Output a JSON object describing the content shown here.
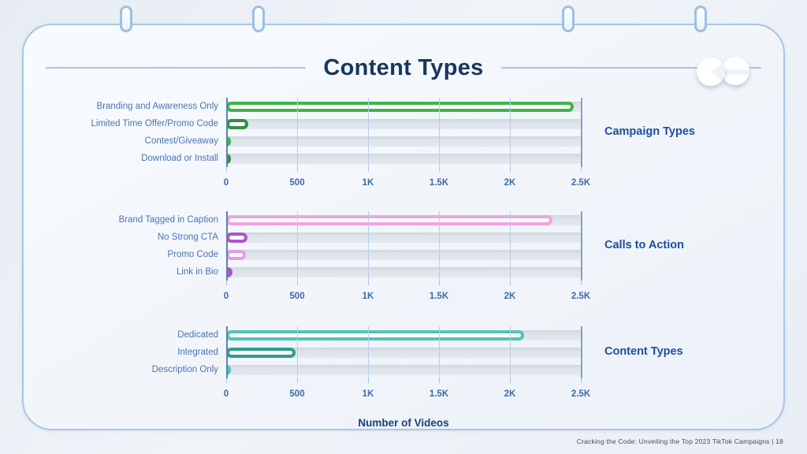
{
  "header": {
    "title": "Content Types"
  },
  "logo": {
    "icon": "smiley-face-logo"
  },
  "axis": {
    "title": "Number of Videos"
  },
  "footer": {
    "credit": "Cracking the Code: Unveiling the Top 2023 TikTok Campaigns |  18"
  },
  "colors": {
    "card_border": "#a9c6e6",
    "title_navy": "#17375e",
    "label_blue": "#4d73b2",
    "tick_blue": "#3f69a8",
    "section_blue": "#1d4e9c",
    "track_gray": "#dde3ea",
    "green_bright": "#3cb54a",
    "green_dark": "#2f8f3e",
    "pink_light": "#f0a3e0",
    "orchid": "#b352c8",
    "pink_soft": "#ea9ae6",
    "teal_light": "#52c3b6",
    "teal_dark": "#2e9c90"
  },
  "chart_data": [
    {
      "type": "bar",
      "orientation": "horizontal",
      "title": "Campaign Types",
      "categories": [
        "Branding and Awareness Only",
        "Limited Time Offer/Promo Code",
        "Contest/Giveaway",
        "Download or Install"
      ],
      "values": [
        2450,
        155,
        20,
        15
      ],
      "bar_colors": [
        "#3cb54a",
        "#2f8f3e",
        "#3cb54a",
        "#2f8f3e"
      ],
      "bar_styles": [
        "outline",
        "outline",
        "solid",
        "solid"
      ],
      "xticks": [
        "0",
        "500",
        "1K",
        "1.5K",
        "2K",
        "2.5K"
      ],
      "xlim": [
        0,
        2500
      ],
      "grid": true,
      "legend": "none"
    },
    {
      "type": "bar",
      "orientation": "horizontal",
      "title": "Calls to Action",
      "categories": [
        "Brand Tagged in Caption",
        "No Strong CTA",
        "Promo Code",
        "Link in Bio"
      ],
      "values": [
        2300,
        150,
        140,
        45
      ],
      "bar_colors": [
        "#f0a3e0",
        "#b352c8",
        "#ea9ae6",
        "#b352c8"
      ],
      "bar_styles": [
        "outline",
        "outline",
        "outline",
        "solid"
      ],
      "xticks": [
        "0",
        "500",
        "1K",
        "1.5K",
        "2K",
        "2.5K"
      ],
      "xlim": [
        0,
        2500
      ],
      "grid": true,
      "legend": "none"
    },
    {
      "type": "bar",
      "orientation": "horizontal",
      "title": "Content Types",
      "categories": [
        "Dedicated",
        "Integrated",
        "Description Only"
      ],
      "values": [
        2100,
        490,
        30
      ],
      "bar_colors": [
        "#52c3b6",
        "#2e9c90",
        "#52c3b6"
      ],
      "bar_styles": [
        "outline",
        "outline",
        "solid"
      ],
      "xticks": [
        "0",
        "500",
        "1K",
        "1.5K",
        "2K",
        "2.5K"
      ],
      "xlim": [
        0,
        2500
      ],
      "grid": true,
      "legend": "none"
    }
  ]
}
